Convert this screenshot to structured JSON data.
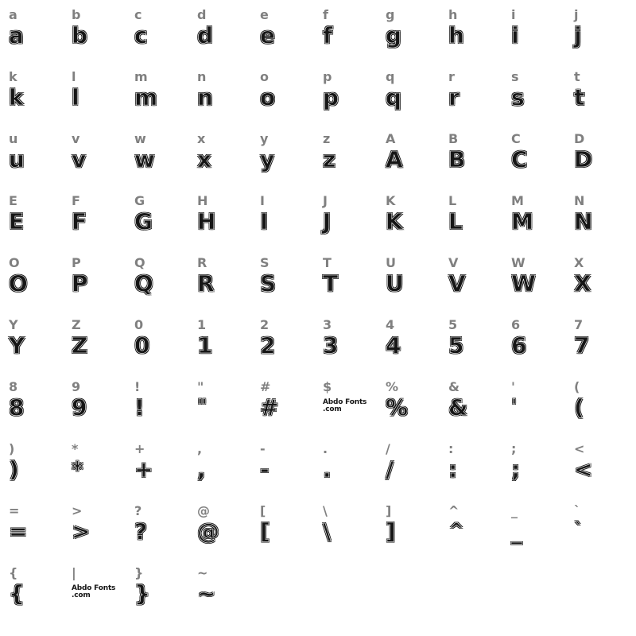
{
  "background_color": "#ffffff",
  "label_color": "#808080",
  "glyph_color": "#161616",
  "label_fontsize": 16,
  "glyph_fontsize": 28,
  "columns": 10,
  "font_mark": "Abdo\nFonts\n.com",
  "glyphs": [
    {
      "label": "a",
      "glyph": "a"
    },
    {
      "label": "b",
      "glyph": "b"
    },
    {
      "label": "c",
      "glyph": "c"
    },
    {
      "label": "d",
      "glyph": "d"
    },
    {
      "label": "e",
      "glyph": "e"
    },
    {
      "label": "f",
      "glyph": "f"
    },
    {
      "label": "g",
      "glyph": "g"
    },
    {
      "label": "h",
      "glyph": "h"
    },
    {
      "label": "i",
      "glyph": "i"
    },
    {
      "label": "j",
      "glyph": "j"
    },
    {
      "label": "k",
      "glyph": "k"
    },
    {
      "label": "l",
      "glyph": "l"
    },
    {
      "label": "m",
      "glyph": "m"
    },
    {
      "label": "n",
      "glyph": "n"
    },
    {
      "label": "o",
      "glyph": "o"
    },
    {
      "label": "p",
      "glyph": "p"
    },
    {
      "label": "q",
      "glyph": "q"
    },
    {
      "label": "r",
      "glyph": "r"
    },
    {
      "label": "s",
      "glyph": "s"
    },
    {
      "label": "t",
      "glyph": "t"
    },
    {
      "label": "u",
      "glyph": "u"
    },
    {
      "label": "v",
      "glyph": "v"
    },
    {
      "label": "w",
      "glyph": "w"
    },
    {
      "label": "x",
      "glyph": "x"
    },
    {
      "label": "y",
      "glyph": "y"
    },
    {
      "label": "z",
      "glyph": "z"
    },
    {
      "label": "A",
      "glyph": "A"
    },
    {
      "label": "B",
      "glyph": "B"
    },
    {
      "label": "C",
      "glyph": "C"
    },
    {
      "label": "D",
      "glyph": "D"
    },
    {
      "label": "E",
      "glyph": "E"
    },
    {
      "label": "F",
      "glyph": "F"
    },
    {
      "label": "G",
      "glyph": "G"
    },
    {
      "label": "H",
      "glyph": "H"
    },
    {
      "label": "I",
      "glyph": "I"
    },
    {
      "label": "J",
      "glyph": "J"
    },
    {
      "label": "K",
      "glyph": "K"
    },
    {
      "label": "L",
      "glyph": "L"
    },
    {
      "label": "M",
      "glyph": "M"
    },
    {
      "label": "N",
      "glyph": "N"
    },
    {
      "label": "O",
      "glyph": "O"
    },
    {
      "label": "P",
      "glyph": "P"
    },
    {
      "label": "Q",
      "glyph": "Q"
    },
    {
      "label": "R",
      "glyph": "R"
    },
    {
      "label": "S",
      "glyph": "S"
    },
    {
      "label": "T",
      "glyph": "T"
    },
    {
      "label": "U",
      "glyph": "U"
    },
    {
      "label": "V",
      "glyph": "V"
    },
    {
      "label": "W",
      "glyph": "W"
    },
    {
      "label": "X",
      "glyph": "X"
    },
    {
      "label": "Y",
      "glyph": "Y"
    },
    {
      "label": "Z",
      "glyph": "Z"
    },
    {
      "label": "0",
      "glyph": "0"
    },
    {
      "label": "1",
      "glyph": "1"
    },
    {
      "label": "2",
      "glyph": "2"
    },
    {
      "label": "3",
      "glyph": "3"
    },
    {
      "label": "4",
      "glyph": "4"
    },
    {
      "label": "5",
      "glyph": "5"
    },
    {
      "label": "6",
      "glyph": "6"
    },
    {
      "label": "7",
      "glyph": "7"
    },
    {
      "label": "8",
      "glyph": "8"
    },
    {
      "label": "9",
      "glyph": "9"
    },
    {
      "label": "!",
      "glyph": "!"
    },
    {
      "label": "\"",
      "glyph": "\"",
      "size": "small"
    },
    {
      "label": "#",
      "glyph": "#"
    },
    {
      "label": "$",
      "glyph": "$",
      "mark": true
    },
    {
      "label": "%",
      "glyph": "%"
    },
    {
      "label": "&",
      "glyph": "&"
    },
    {
      "label": "'",
      "glyph": "'",
      "size": "small"
    },
    {
      "label": "(",
      "glyph": "("
    },
    {
      "label": ")",
      "glyph": ")"
    },
    {
      "label": "*",
      "glyph": "*"
    },
    {
      "label": "+",
      "glyph": "+"
    },
    {
      "label": ",",
      "glyph": ","
    },
    {
      "label": "-",
      "glyph": "-"
    },
    {
      "label": ".",
      "glyph": "."
    },
    {
      "label": "/",
      "glyph": "/"
    },
    {
      "label": ":",
      "glyph": ":"
    },
    {
      "label": ";",
      "glyph": ";"
    },
    {
      "label": "<",
      "glyph": "<"
    },
    {
      "label": "=",
      "glyph": "="
    },
    {
      "label": ">",
      "glyph": ">"
    },
    {
      "label": "?",
      "glyph": "?"
    },
    {
      "label": "@",
      "glyph": "@"
    },
    {
      "label": "[",
      "glyph": "["
    },
    {
      "label": "\\",
      "glyph": "\\"
    },
    {
      "label": "]",
      "glyph": "]"
    },
    {
      "label": "^",
      "glyph": "^",
      "size": "small"
    },
    {
      "label": "_",
      "glyph": "_"
    },
    {
      "label": "`",
      "glyph": "`",
      "size": "small"
    },
    {
      "label": "{",
      "glyph": "{"
    },
    {
      "label": "|",
      "glyph": "|",
      "mark": true
    },
    {
      "label": "}",
      "glyph": "}"
    },
    {
      "label": "~",
      "glyph": "~"
    }
  ]
}
